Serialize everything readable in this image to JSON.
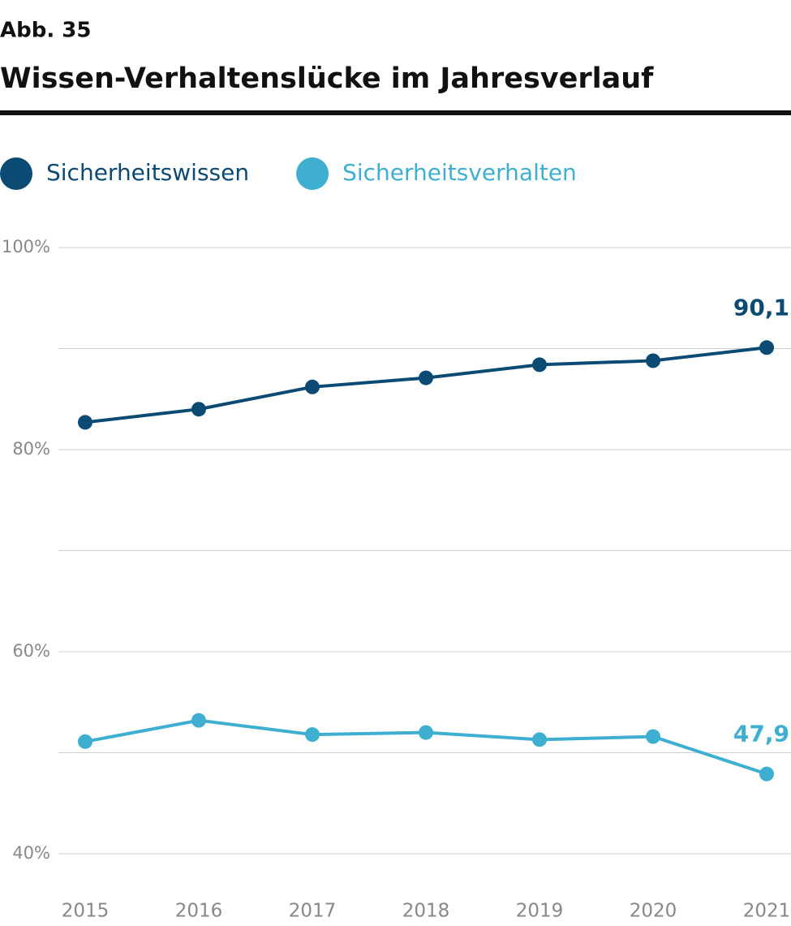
{
  "chart_data": {
    "type": "line",
    "figure_label": "Abb. 35",
    "title": "Wissen-Verhaltenslücke im Jahresverlauf",
    "categories": [
      "2015",
      "2016",
      "2017",
      "2018",
      "2019",
      "2020",
      "2021"
    ],
    "series": [
      {
        "name": "Sicherheitswissen",
        "color": "#0b4a72",
        "values": [
          82.7,
          84.0,
          86.2,
          87.1,
          88.4,
          88.8,
          90.1
        ],
        "value_labels": [
          null,
          null,
          null,
          null,
          null,
          null,
          "90,1"
        ]
      },
      {
        "name": "Sicherheitsverhalten",
        "color": "#3eafd0",
        "values": [
          51.1,
          53.2,
          51.8,
          52.0,
          51.3,
          51.6,
          47.9
        ],
        "value_labels": [
          null,
          null,
          null,
          null,
          null,
          null,
          "47,9"
        ]
      }
    ],
    "ylim": [
      40,
      100
    ],
    "yticks": [
      {
        "value": 40,
        "label": "40%"
      },
      {
        "value": 60,
        "label": "60%"
      },
      {
        "value": 80,
        "label": "80%"
      },
      {
        "value": 100,
        "label": "100%"
      }
    ],
    "ygrid": [
      40,
      50,
      60,
      70,
      80,
      90,
      100
    ],
    "grid": true,
    "legend": "top"
  }
}
